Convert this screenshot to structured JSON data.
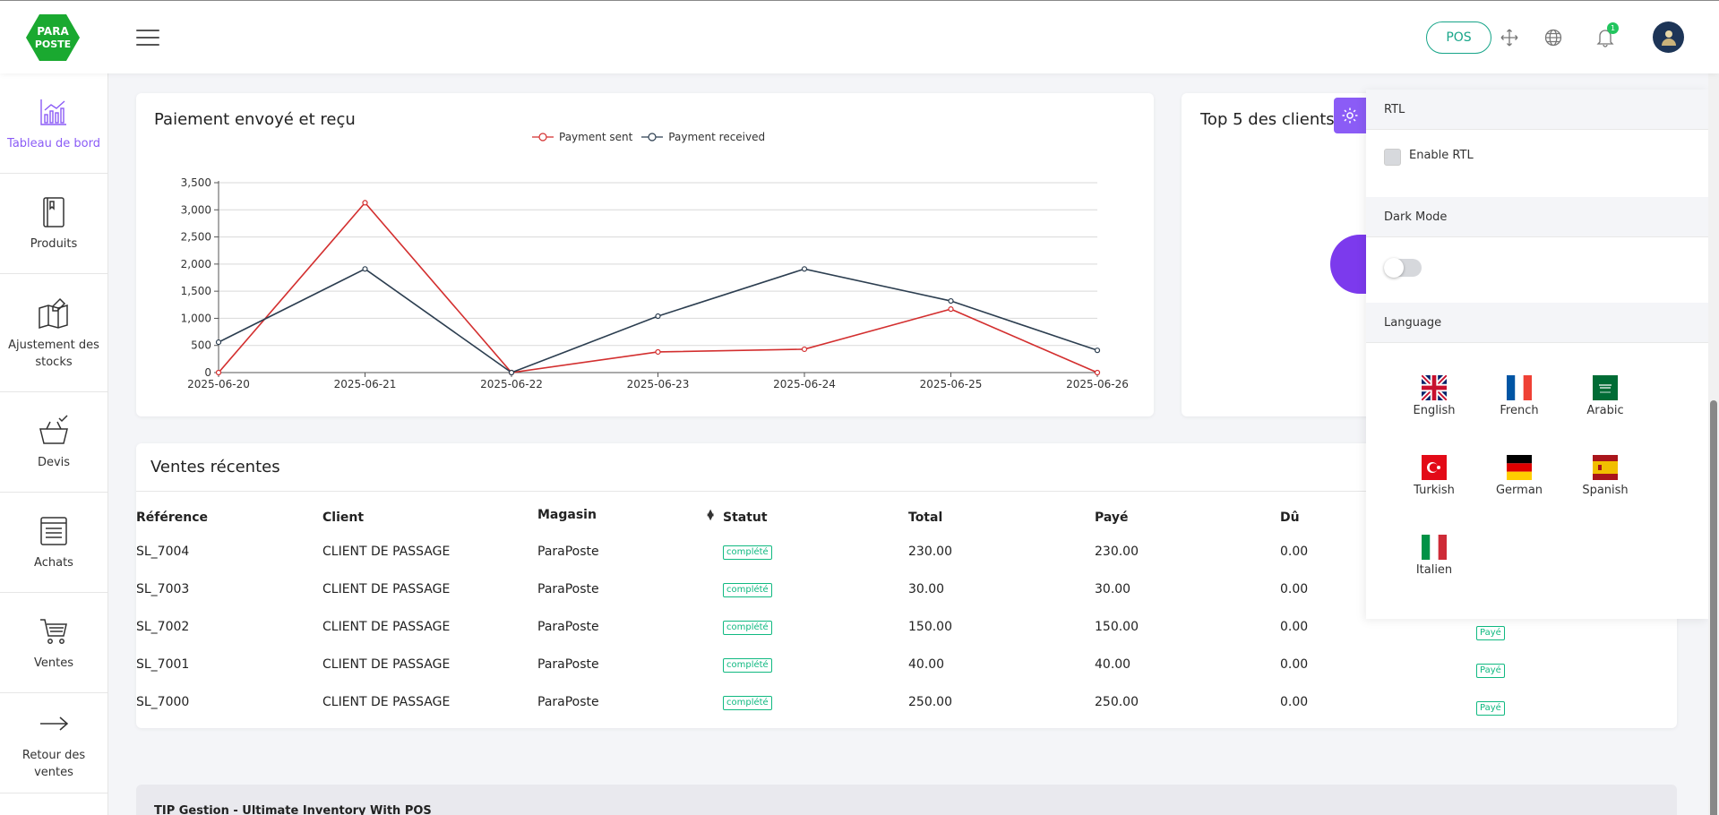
{
  "header": {
    "logo_line1": "PARA",
    "logo_line2": "POSTE",
    "pos_label": "POS",
    "notification_count": "1",
    "brand_green": "#1aa930"
  },
  "sidebar": {
    "items": [
      {
        "label": "Tableau de bord",
        "icon": "chart-icon",
        "active": true
      },
      {
        "label": "Produits",
        "icon": "book-icon"
      },
      {
        "label": "Ajustement des stocks",
        "icon": "map-edit-icon"
      },
      {
        "label": "Devis",
        "icon": "basket-check-icon"
      },
      {
        "label": "Achats",
        "icon": "receipt-icon"
      },
      {
        "label": "Ventes",
        "icon": "cart-icon"
      },
      {
        "label": "Retour des ventes",
        "icon": "arrow-right-icon"
      }
    ]
  },
  "payment_card": {
    "title": "Paiement envoyé et reçu"
  },
  "chart_data": {
    "type": "line",
    "x": [
      "2025-06-20",
      "2025-06-21",
      "2025-06-22",
      "2025-06-23",
      "2025-06-24",
      "2025-06-25",
      "2025-06-26"
    ],
    "series": [
      {
        "name": "Payment sent",
        "color": "#d32f2f",
        "values": [
          0,
          3130,
          0,
          380,
          430,
          1170,
          0
        ]
      },
      {
        "name": "Payment received",
        "color": "#2c3e50",
        "values": [
          560,
          1910,
          0,
          1040,
          1910,
          1320,
          410
        ]
      }
    ],
    "ylim": [
      0,
      3500
    ],
    "yticks": [
      "0",
      "500",
      "1,000",
      "1,500",
      "2,000",
      "2,500",
      "3,000",
      "3,500"
    ],
    "grid": true,
    "legend": "top-center"
  },
  "top_clients_card": {
    "title": "Top 5 des clients ("
  },
  "recent_sales": {
    "title": "Ventes récentes",
    "columns": [
      "Référence",
      "Client",
      "Magasin",
      "Statut",
      "Total",
      "Payé",
      "Dû"
    ],
    "rows": [
      {
        "ref": "SL_7004",
        "client": "CLIENT DE PASSAGE",
        "store": "ParaPoste",
        "status": "complété",
        "total": "230.00",
        "paid": "230.00",
        "due": "0.00",
        "payment": ""
      },
      {
        "ref": "SL_7003",
        "client": "CLIENT DE PASSAGE",
        "store": "ParaPoste",
        "status": "complété",
        "total": "30.00",
        "paid": "30.00",
        "due": "0.00",
        "payment": ""
      },
      {
        "ref": "SL_7002",
        "client": "CLIENT DE PASSAGE",
        "store": "ParaPoste",
        "status": "complété",
        "total": "150.00",
        "paid": "150.00",
        "due": "0.00",
        "payment": "Payé"
      },
      {
        "ref": "SL_7001",
        "client": "CLIENT DE PASSAGE",
        "store": "ParaPoste",
        "status": "complété",
        "total": "40.00",
        "paid": "40.00",
        "due": "0.00",
        "payment": "Payé"
      },
      {
        "ref": "SL_7000",
        "client": "CLIENT DE PASSAGE",
        "store": "ParaPoste",
        "status": "complété",
        "total": "250.00",
        "paid": "250.00",
        "due": "0.00",
        "payment": "Payé"
      }
    ]
  },
  "footer": {
    "text": "TIP Gestion - Ultimate Inventory With POS"
  },
  "customizer": {
    "rtl_title": "RTL",
    "rtl_label": "Enable RTL",
    "rtl_checked": false,
    "dark_title": "Dark Mode",
    "dark_on": false,
    "language_title": "Language",
    "languages": [
      {
        "label": "English",
        "flag": "uk-flag"
      },
      {
        "label": "French",
        "flag": "france-flag"
      },
      {
        "label": "Arabic",
        "flag": "saudi-flag"
      },
      {
        "label": "Turkish",
        "flag": "turkey-flag"
      },
      {
        "label": "German",
        "flag": "germany-flag"
      },
      {
        "label": "Spanish",
        "flag": "spain-flag"
      },
      {
        "label": "Italien",
        "flag": "italy-flag"
      }
    ],
    "accent": "#8b5cf6"
  }
}
